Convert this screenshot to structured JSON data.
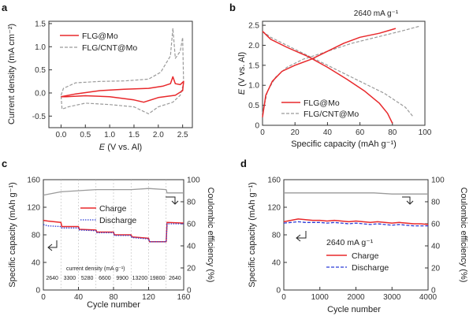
{
  "colors": {
    "red": "#e8282b",
    "gray": "#9a9a9a",
    "blue": "#2b3bd6",
    "axis": "#333333"
  },
  "chart_data": [
    {
      "panel": "a",
      "type": "line",
      "xlabel_italic": "E",
      "xlabel_rest": " (V vs. Al)",
      "ylabel": "Current density (mA cm⁻²)",
      "xlim": [
        -0.25,
        2.7
      ],
      "ylim": [
        -0.75,
        1.55
      ],
      "xticks": [
        "0.0",
        "0.5",
        "1.0",
        "1.5",
        "2.0",
        "2.5"
      ],
      "xtick_values": [
        0,
        0.5,
        1,
        1.5,
        2,
        2.5
      ],
      "yticks": [
        "-0.5",
        "0.0",
        "0.5",
        "1.0",
        "1.5"
      ],
      "ytick_values": [
        -0.5,
        0,
        0.5,
        1,
        1.5
      ],
      "legend": [
        "FLG@Mo",
        "FLG/CNT@Mo"
      ],
      "series": [
        {
          "name": "FLG/CNT@Mo",
          "style": "gray-dash",
          "points": [
            [
              0,
              -0.05
            ],
            [
              0.05,
              0.1
            ],
            [
              0.3,
              0.22
            ],
            [
              0.8,
              0.25
            ],
            [
              1.3,
              0.26
            ],
            [
              1.8,
              0.3
            ],
            [
              2.05,
              0.45
            ],
            [
              2.25,
              0.8
            ],
            [
              2.3,
              1.4
            ],
            [
              2.35,
              0.75
            ],
            [
              2.45,
              0.9
            ],
            [
              2.5,
              1.2
            ],
            [
              2.52,
              0.2
            ],
            [
              2.45,
              -0.05
            ],
            [
              2.3,
              -0.2
            ],
            [
              2.0,
              -0.3
            ],
            [
              1.8,
              -0.45
            ],
            [
              1.5,
              -0.3
            ],
            [
              1.0,
              -0.25
            ],
            [
              0.5,
              -0.22
            ],
            [
              0.15,
              -0.3
            ],
            [
              0.02,
              -0.35
            ],
            [
              0,
              -0.05
            ]
          ]
        },
        {
          "name": "FLG@Mo",
          "style": "red-solid",
          "points": [
            [
              0,
              -0.08
            ],
            [
              0.3,
              -0.02
            ],
            [
              0.8,
              0.05
            ],
            [
              1.3,
              0.08
            ],
            [
              1.8,
              0.1
            ],
            [
              2.1,
              0.15
            ],
            [
              2.25,
              0.2
            ],
            [
              2.3,
              0.35
            ],
            [
              2.35,
              0.2
            ],
            [
              2.45,
              0.18
            ],
            [
              2.52,
              0.25
            ],
            [
              2.5,
              0.05
            ],
            [
              2.35,
              -0.05
            ],
            [
              2.0,
              -0.1
            ],
            [
              1.7,
              -0.2
            ],
            [
              1.5,
              -0.15
            ],
            [
              1.0,
              -0.08
            ],
            [
              0.5,
              -0.06
            ],
            [
              0.1,
              -0.08
            ],
            [
              0,
              -0.08
            ]
          ]
        }
      ]
    },
    {
      "panel": "b",
      "type": "line",
      "title": "2640 mA g⁻¹",
      "xlabel": "Specific capacity (mAh g⁻¹)",
      "ylabel_italic": "E",
      "ylabel_rest": " (V vs. Al)",
      "xlim": [
        0,
        100
      ],
      "ylim": [
        0,
        2.6
      ],
      "xticks": [
        "0",
        "20",
        "40",
        "60",
        "80",
        "100"
      ],
      "xtick_values": [
        0,
        20,
        40,
        60,
        80,
        100
      ],
      "yticks": [
        "0",
        "0.5",
        "1.0",
        "1.5",
        "2.0",
        "2.5"
      ],
      "ytick_values": [
        0,
        0.5,
        1,
        1.5,
        2,
        2.5
      ],
      "legend": [
        "FLG@Mo",
        "FLG/CNT@Mo"
      ],
      "series": [
        {
          "name": "FLG/CNT@Mo charge",
          "style": "gray-dash",
          "points": [
            [
              0,
              0.3
            ],
            [
              3,
              0.85
            ],
            [
              8,
              1.2
            ],
            [
              15,
              1.45
            ],
            [
              25,
              1.65
            ],
            [
              40,
              1.85
            ],
            [
              55,
              2.05
            ],
            [
              70,
              2.2
            ],
            [
              85,
              2.35
            ],
            [
              97,
              2.48
            ]
          ]
        },
        {
          "name": "FLG/CNT@Mo discharge",
          "style": "gray-dash",
          "points": [
            [
              0,
              2.35
            ],
            [
              5,
              2.2
            ],
            [
              15,
              2.0
            ],
            [
              30,
              1.7
            ],
            [
              45,
              1.4
            ],
            [
              60,
              1.1
            ],
            [
              75,
              0.8
            ],
            [
              88,
              0.45
            ],
            [
              93,
              0.2
            ]
          ]
        },
        {
          "name": "FLG@Mo charge",
          "style": "red-solid",
          "points": [
            [
              0,
              0.2
            ],
            [
              2,
              0.75
            ],
            [
              6,
              1.1
            ],
            [
              12,
              1.35
            ],
            [
              20,
              1.5
            ],
            [
              30,
              1.65
            ],
            [
              40,
              1.85
            ],
            [
              50,
              2.05
            ],
            [
              60,
              2.2
            ],
            [
              72,
              2.3
            ],
            [
              82,
              2.42
            ]
          ]
        },
        {
          "name": "FLG@Mo discharge",
          "style": "red-solid",
          "points": [
            [
              0,
              2.35
            ],
            [
              5,
              2.15
            ],
            [
              15,
              1.95
            ],
            [
              28,
              1.72
            ],
            [
              40,
              1.45
            ],
            [
              52,
              1.15
            ],
            [
              63,
              0.85
            ],
            [
              72,
              0.55
            ],
            [
              77,
              0.3
            ],
            [
              80,
              0.05
            ]
          ]
        }
      ]
    },
    {
      "panel": "c",
      "type": "line",
      "xlabel": "Cycle number",
      "ylabel_left": "Specific capacity (mAh g⁻¹)",
      "ylabel_right": "Coulombic efficiency (%)",
      "xlim": [
        0,
        160
      ],
      "ylim_left": [
        0,
        160
      ],
      "ylim_right": [
        0,
        100
      ],
      "xticks": [
        "0",
        "40",
        "80",
        "120",
        "160"
      ],
      "xtick_values": [
        0,
        40,
        80,
        120,
        160
      ],
      "yticks_left": [
        "0",
        "40",
        "80",
        "120",
        "160"
      ],
      "ytick_values_left": [
        0,
        40,
        80,
        120,
        160
      ],
      "yticks_right": [
        "0",
        "20",
        "40",
        "60",
        "80",
        "100"
      ],
      "ytick_values_right": [
        0,
        20,
        40,
        60,
        80,
        100
      ],
      "legend": [
        "Charge",
        "Discharge"
      ],
      "annotation": "current density (mA g⁻¹)",
      "current_densities": [
        "2640",
        "3300",
        "5280",
        "6600",
        "9900",
        "13200",
        "19800",
        "2640"
      ],
      "segment_bounds": [
        0,
        20,
        40,
        60,
        80,
        100,
        120,
        140,
        160
      ],
      "series": [
        {
          "name": "Charge",
          "style": "red-solid",
          "points": [
            [
              0,
              101
            ],
            [
              5,
              100
            ],
            [
              20,
              98
            ],
            [
              21,
              92
            ],
            [
              40,
              92
            ],
            [
              41,
              88
            ],
            [
              60,
              87
            ],
            [
              61,
              84
            ],
            [
              80,
              84
            ],
            [
              81,
              80
            ],
            [
              100,
              80
            ],
            [
              101,
              77
            ],
            [
              120,
              75
            ],
            [
              121,
              70
            ],
            [
              140,
              70
            ],
            [
              141,
              98
            ],
            [
              160,
              97
            ]
          ]
        },
        {
          "name": "Discharge",
          "style": "blue-dot",
          "points": [
            [
              0,
              95
            ],
            [
              5,
              93
            ],
            [
              20,
              92
            ],
            [
              21,
              90
            ],
            [
              40,
              90
            ],
            [
              41,
              87
            ],
            [
              60,
              86
            ],
            [
              61,
              83
            ],
            [
              80,
              83
            ],
            [
              81,
              79
            ],
            [
              100,
              79
            ],
            [
              101,
              76
            ],
            [
              120,
              74
            ],
            [
              121,
              70
            ],
            [
              140,
              70
            ],
            [
              141,
              96
            ],
            [
              160,
              96
            ]
          ]
        },
        {
          "name": "Coulombic efficiency",
          "style": "gray-solid",
          "axis": "right",
          "points": [
            [
              0,
              86
            ],
            [
              20,
              89
            ],
            [
              40,
              90
            ],
            [
              60,
              91
            ],
            [
              80,
              91
            ],
            [
              100,
              91
            ],
            [
              120,
              92
            ],
            [
              140,
              91
            ],
            [
              141,
              88
            ],
            [
              160,
              88
            ]
          ]
        }
      ]
    },
    {
      "panel": "d",
      "type": "line",
      "xlabel": "Cycle number",
      "ylabel_left": "Specific capacity (mAh g⁻¹)",
      "ylabel_right": "Coulombic efficiency (%)",
      "xlim": [
        0,
        4000
      ],
      "ylim_left": [
        0,
        160
      ],
      "ylim_right": [
        0,
        100
      ],
      "xticks": [
        "0",
        "1000",
        "2000",
        "3000",
        "4000"
      ],
      "xtick_values": [
        0,
        1000,
        2000,
        3000,
        4000
      ],
      "yticks_left": [
        "0",
        "40",
        "80",
        "120",
        "160"
      ],
      "ytick_values_left": [
        0,
        40,
        80,
        120,
        160
      ],
      "yticks_right": [
        "0",
        "20",
        "40",
        "60",
        "80",
        "100"
      ],
      "ytick_values_right": [
        0,
        20,
        40,
        60,
        80,
        100
      ],
      "annotation": "2640 mA g⁻¹",
      "legend": [
        "Charge",
        "Discharge"
      ],
      "series": [
        {
          "name": "Charge",
          "style": "red-solid",
          "points": [
            [
              0,
              99
            ],
            [
              200,
              101
            ],
            [
              400,
              103
            ],
            [
              600,
              102
            ],
            [
              800,
              101
            ],
            [
              1000,
              101
            ],
            [
              1200,
              100
            ],
            [
              1400,
              101
            ],
            [
              1600,
              100
            ],
            [
              1800,
              99
            ],
            [
              2000,
              100
            ],
            [
              2200,
              99
            ],
            [
              2400,
              98
            ],
            [
              2600,
              99
            ],
            [
              2800,
              98
            ],
            [
              3000,
              97
            ],
            [
              3200,
              98
            ],
            [
              3400,
              97
            ],
            [
              3600,
              96
            ],
            [
              3800,
              96
            ],
            [
              4000,
              95
            ]
          ]
        },
        {
          "name": "Discharge",
          "style": "blue-dash",
          "points": [
            [
              0,
              97
            ],
            [
              200,
              98
            ],
            [
              400,
              99
            ],
            [
              600,
              98
            ],
            [
              800,
              98
            ],
            [
              1000,
              98
            ],
            [
              1200,
              97
            ],
            [
              1400,
              98
            ],
            [
              1600,
              97
            ],
            [
              1800,
              96
            ],
            [
              2000,
              97
            ],
            [
              2200,
              96
            ],
            [
              2400,
              95
            ],
            [
              2600,
              96
            ],
            [
              2800,
              95
            ],
            [
              3000,
              94
            ],
            [
              3200,
              95
            ],
            [
              3400,
              94
            ],
            [
              3600,
              93
            ],
            [
              3800,
              93
            ],
            [
              4000,
              93
            ]
          ]
        },
        {
          "name": "Coulombic efficiency",
          "style": "gray-solid",
          "axis": "right",
          "points": [
            [
              0,
              88
            ],
            [
              500,
              88
            ],
            [
              1000,
              88
            ],
            [
              1500,
              88
            ],
            [
              2000,
              88
            ],
            [
              2500,
              88
            ],
            [
              3000,
              87
            ],
            [
              3500,
              87
            ],
            [
              4000,
              87
            ]
          ]
        }
      ]
    }
  ]
}
